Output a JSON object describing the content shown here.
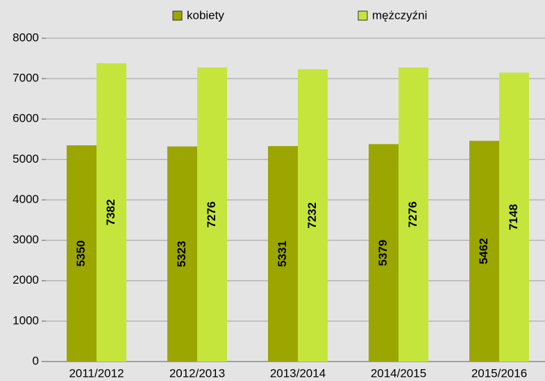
{
  "chart_data": {
    "type": "bar",
    "categories": [
      "2011/2012",
      "2012/2013",
      "2013/2014",
      "2014/2015",
      "2015/2016"
    ],
    "series": [
      {
        "name": "kobiety",
        "color": "#9ba600",
        "values": [
          5350,
          5323,
          5331,
          5379,
          5462
        ]
      },
      {
        "name": "mężczyźni",
        "color": "#c6e53c",
        "values": [
          7382,
          7276,
          7232,
          7276,
          7148
        ]
      }
    ],
    "ylim": [
      0,
      8000
    ],
    "yticks": [
      0,
      1000,
      2000,
      3000,
      4000,
      5000,
      6000,
      7000,
      8000
    ],
    "grid": true,
    "legend": "top"
  }
}
